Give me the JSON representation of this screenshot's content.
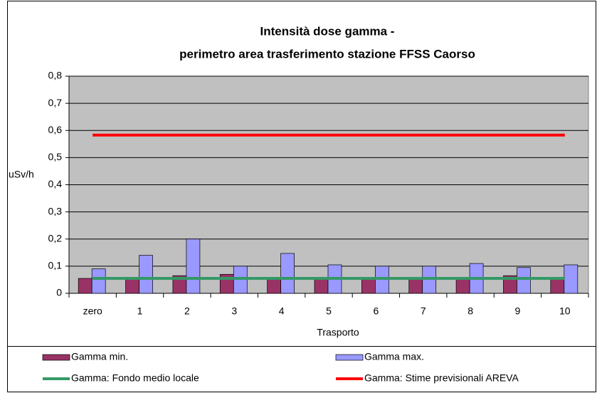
{
  "chart_data": {
    "type": "bar",
    "title": [
      "Intensità dose gamma -",
      "perimetro area trasferimento stazione FFSS Caorso"
    ],
    "x_label": "Trasporto",
    "y_label": "uSv/h",
    "categories": [
      "zero",
      "1",
      "2",
      "3",
      "4",
      "5",
      "6",
      "7",
      "8",
      "9",
      "10"
    ],
    "series": [
      {
        "name": "Gamma min.",
        "type": "bar",
        "color": "#993366",
        "values": [
          0.055,
          0.055,
          0.065,
          0.07,
          0.055,
          0.055,
          0.055,
          0.055,
          0.055,
          0.065,
          0.055
        ]
      },
      {
        "name": "Gamma max.",
        "type": "bar",
        "color": "#9999ff",
        "values": [
          0.09,
          0.14,
          0.2,
          0.1,
          0.147,
          0.105,
          0.1,
          0.1,
          0.11,
          0.095,
          0.105
        ]
      },
      {
        "name": "Gamma: Fondo medio locale",
        "type": "line",
        "color": "#339966",
        "values": [
          0.055,
          0.055,
          0.055,
          0.055,
          0.055,
          0.055,
          0.055,
          0.055,
          0.055,
          0.055,
          0.055
        ]
      },
      {
        "name": "Gamma: Stime previsionali AREVA",
        "type": "line",
        "color": "#ff0000",
        "values": [
          0.583,
          0.583,
          0.583,
          0.583,
          0.583,
          0.583,
          0.583,
          0.583,
          0.583,
          0.583,
          0.583
        ]
      }
    ],
    "ylim": [
      0,
      0.8
    ],
    "yticks": [
      0,
      {
        "value": 0.1,
        "label": "0,1"
      },
      {
        "value": 0.2,
        "label": "0,2"
      },
      {
        "value": 0.3,
        "label": "0,3"
      },
      {
        "value": 0.4,
        "label": "0,4"
      },
      {
        "value": 0.5,
        "label": "0,5"
      },
      {
        "value": 0.6,
        "label": "0,6"
      },
      {
        "value": 0.7,
        "label": "0,7"
      },
      {
        "value": 0.8,
        "label": "0,8"
      }
    ],
    "grid": true,
    "plot_background": "#c0c0c0",
    "legend": "bottom"
  }
}
